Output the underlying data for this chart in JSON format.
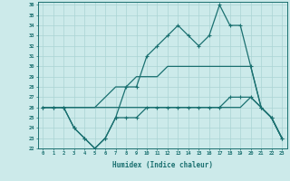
{
  "xlabel": "Humidex (Indice chaleur)",
  "x": [
    0,
    1,
    2,
    3,
    4,
    5,
    6,
    7,
    8,
    9,
    10,
    11,
    12,
    13,
    14,
    15,
    16,
    17,
    18,
    19,
    20,
    21,
    22,
    23
  ],
  "line_max": [
    26,
    26,
    26,
    24,
    23,
    22,
    23,
    25,
    28,
    28,
    31,
    32,
    33,
    34,
    33,
    32,
    33,
    36,
    34,
    34,
    30,
    26,
    25,
    23
  ],
  "line_avg_high": [
    26,
    26,
    26,
    26,
    26,
    26,
    27,
    28,
    28,
    29,
    29,
    29,
    30,
    30,
    30,
    30,
    30,
    30,
    30,
    30,
    30,
    26,
    25,
    23
  ],
  "line_avg_low": [
    26,
    26,
    26,
    26,
    26,
    26,
    26,
    26,
    26,
    26,
    26,
    26,
    26,
    26,
    26,
    26,
    26,
    26,
    26,
    26,
    27,
    26,
    25,
    23
  ],
  "line_min": [
    26,
    26,
    26,
    24,
    23,
    22,
    23,
    25,
    25,
    25,
    26,
    26,
    26,
    26,
    26,
    26,
    26,
    26,
    27,
    27,
    27,
    26,
    25,
    23
  ],
  "line_color": "#1a7070",
  "bg_color": "#cceaea",
  "grid_color": "#aad4d4",
  "ylim_min": 22,
  "ylim_max": 36,
  "xlim_min": 0,
  "xlim_max": 23
}
